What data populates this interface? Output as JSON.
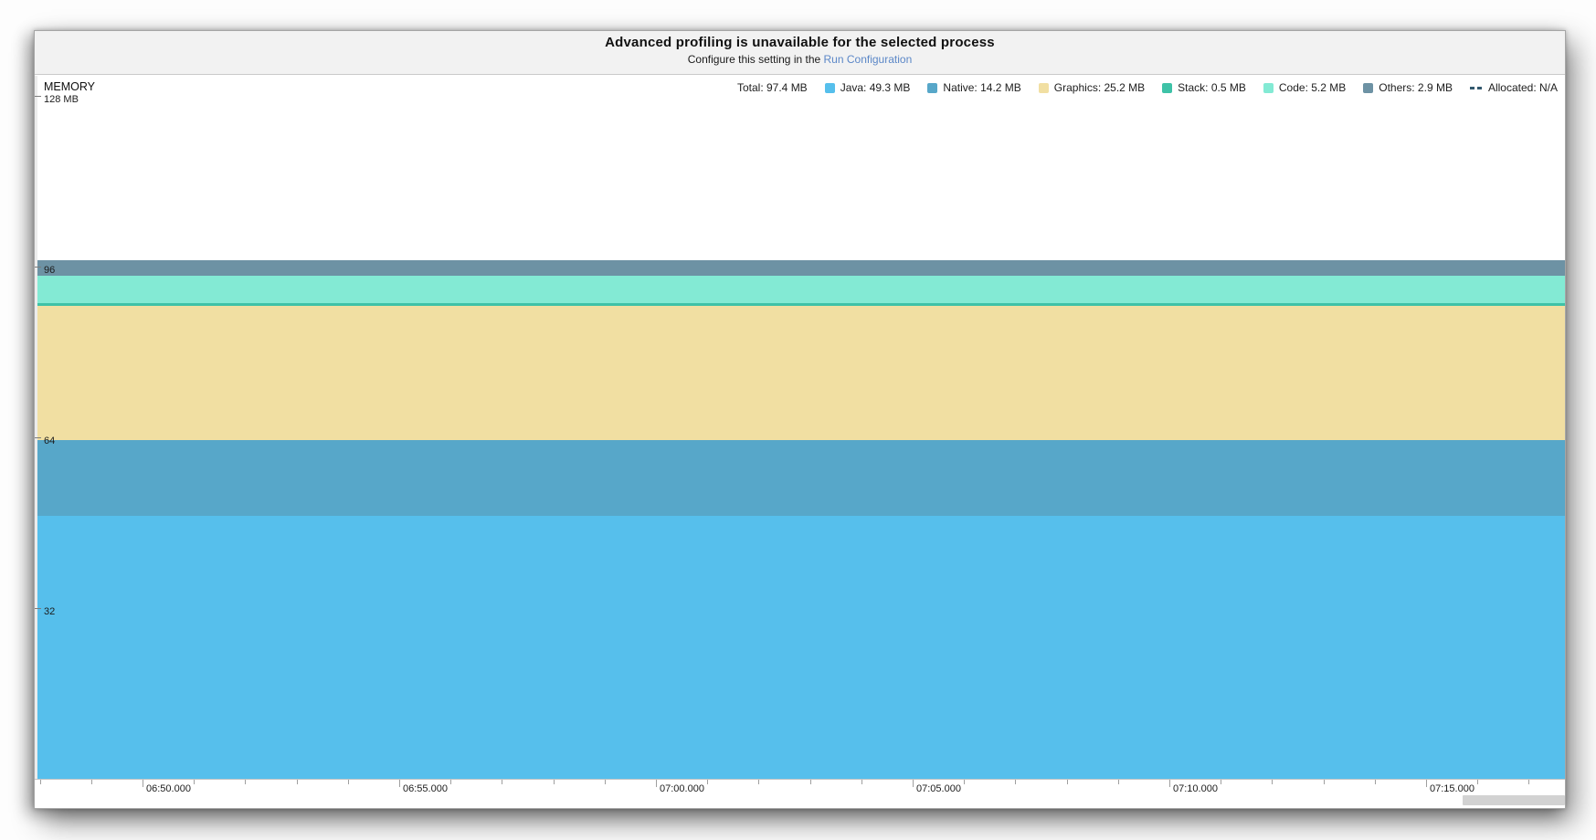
{
  "banner": {
    "title": "Advanced profiling is unavailable for the selected process",
    "subtitle_prefix": "Configure this setting in the",
    "link_label": "Run Configuration"
  },
  "memory_panel": {
    "section_label": "MEMORY",
    "legend": [
      {
        "name": "total",
        "label": "Total: 97.4 MB",
        "swatch": "none",
        "color": ""
      },
      {
        "name": "java",
        "label": "Java: 49.3 MB",
        "swatch": "square",
        "color": "#56bfec"
      },
      {
        "name": "native",
        "label": "Native: 14.2 MB",
        "swatch": "square",
        "color": "#57a7c9"
      },
      {
        "name": "graphics",
        "label": "Graphics: 25.2 MB",
        "swatch": "square",
        "color": "#f1dfa2"
      },
      {
        "name": "stack",
        "label": "Stack: 0.5 MB",
        "swatch": "square",
        "color": "#3ec2a7"
      },
      {
        "name": "code",
        "label": "Code: 5.2 MB",
        "swatch": "square",
        "color": "#83ead4"
      },
      {
        "name": "others",
        "label": "Others: 2.9 MB",
        "swatch": "square",
        "color": "#6d92a4"
      },
      {
        "name": "allocated",
        "label": "Allocated: N/A",
        "swatch": "dashes",
        "color": "#33596e"
      }
    ]
  },
  "chart_data": {
    "type": "area",
    "title": "MEMORY",
    "stacked": true,
    "values_constant_over_visible_range": true,
    "total_mb": 97.4,
    "allocated": "N/A",
    "ylim": [
      0,
      128
    ],
    "y_unit": "MB",
    "y_ticks": [
      {
        "label": "128 MB",
        "mb": 128
      },
      {
        "label": "96",
        "mb": 96
      },
      {
        "label": "64",
        "mb": 64
      },
      {
        "label": "32",
        "mb": 32
      }
    ],
    "x_tick_labels": [
      "06:50.000",
      "06:55.000",
      "07:00.000",
      "07:05.000",
      "07:10.000",
      "07:15.000"
    ],
    "x_minor_ticks_per_major": 5,
    "legend_position": "top-right",
    "grid": false,
    "series": [
      {
        "name": "Java",
        "value_mb": 49.3,
        "color": "#56bfec"
      },
      {
        "name": "Native",
        "value_mb": 14.2,
        "color": "#57a7c9"
      },
      {
        "name": "Graphics",
        "value_mb": 25.2,
        "color": "#f1dfa2"
      },
      {
        "name": "Stack",
        "value_mb": 0.5,
        "color": "#3ec2a7"
      },
      {
        "name": "Code",
        "value_mb": 5.2,
        "color": "#83ead4"
      },
      {
        "name": "Others",
        "value_mb": 2.9,
        "color": "#6d92a4"
      }
    ]
  }
}
